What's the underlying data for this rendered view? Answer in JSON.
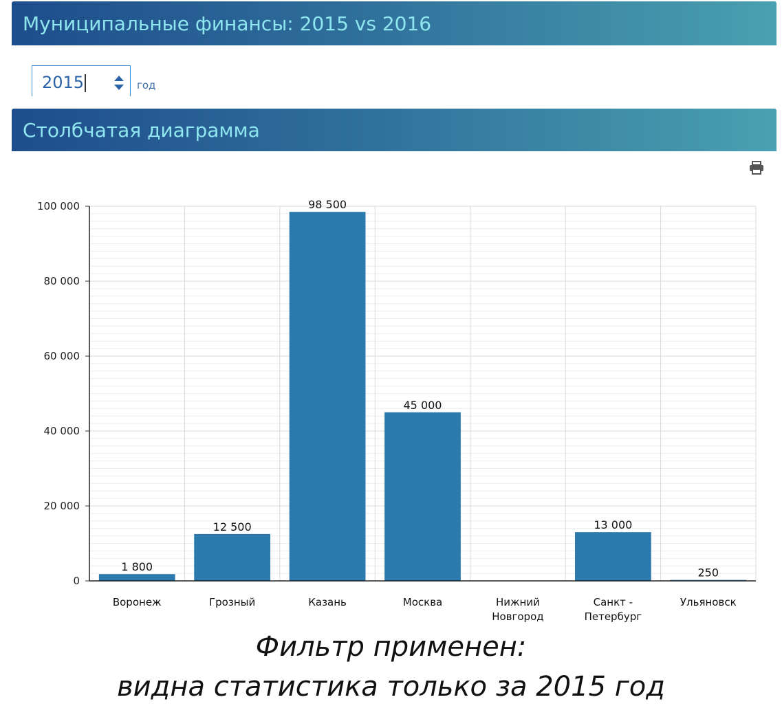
{
  "header": {
    "title": "Муниципальные финансы: 2015 vs 2016"
  },
  "filter": {
    "year_value": "2015",
    "unit_label": "год"
  },
  "chart_panel": {
    "title": "Столбчатая диаграмма",
    "print_icon": "printer-icon"
  },
  "colors": {
    "bar": "#2b79ad",
    "banner_start": "#1e4d8c",
    "banner_end": "#4aa0b0",
    "banner_text": "#8fe6ee"
  },
  "chart_data": {
    "type": "bar",
    "categories": [
      [
        "Воронеж"
      ],
      [
        "Грозный"
      ],
      [
        "Казань"
      ],
      [
        "Москва"
      ],
      [
        "Нижний",
        "Новгород"
      ],
      [
        "Санкт -",
        "Петербург"
      ],
      [
        "Ульяновск"
      ]
    ],
    "values": [
      1800,
      12500,
      98500,
      45000,
      0,
      13000,
      250
    ],
    "data_labels": [
      "1 800",
      "12 500",
      "98 500",
      "45 000",
      "",
      "13 000",
      "250"
    ],
    "yticks": [
      0,
      20000,
      40000,
      60000,
      80000,
      100000
    ],
    "ytick_labels": [
      "0",
      "20 000",
      "40 000",
      "60 000",
      "80 000",
      "100 000"
    ],
    "ylim": [
      0,
      100000
    ],
    "grid": true,
    "legend": "none"
  },
  "caption": {
    "line1": "Фильтр применен:",
    "line2": "видна статистика только за 2015 год"
  }
}
